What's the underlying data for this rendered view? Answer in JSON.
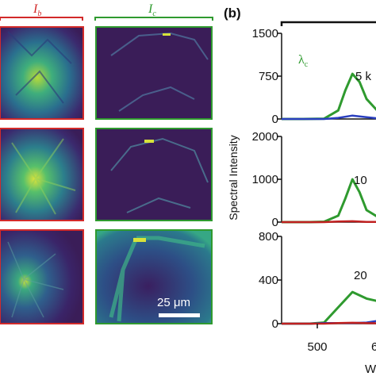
{
  "figure": {
    "left_panel": {
      "col_b_label": "I",
      "col_b_sub": "b",
      "col_c_label": "I",
      "col_c_sub": "c",
      "scale_bar_label": "25 μm",
      "colors": {
        "red": "#d22a2a",
        "green": "#2f9a2f",
        "bg": "#3b1f5c",
        "mid": "#2b7f8f",
        "bright": "#d8e23a"
      }
    },
    "right_panel": {
      "panel_label": "(b)",
      "ylabel": "Spectral Intensity",
      "xlabel_partial": "W",
      "x_tick_500": "500",
      "x_tick_partial": "6",
      "peak_label": "λ",
      "peak_sub": "c",
      "subplot_labels": [
        "5 k",
        "10",
        "20"
      ],
      "y_ticks": [
        [
          "1500",
          "750",
          "0"
        ],
        [
          "2000",
          "1000",
          "0"
        ],
        [
          "800",
          "400",
          "0"
        ]
      ]
    }
  },
  "chart_data": [
    {
      "type": "line",
      "xlabel": "W",
      "ylabel": "Spectral Intensity",
      "ylim": [
        0,
        1500
      ],
      "series": [
        {
          "color": "#2f9a2f",
          "x": [
            440,
            470,
            500,
            520,
            530,
            540,
            550,
            560,
            580,
            600,
            620
          ],
          "values": [
            0,
            0,
            5,
            150,
            500,
            790,
            650,
            350,
            80,
            15,
            5
          ]
        },
        {
          "color": "#2a3fbf",
          "x": [
            440,
            500,
            520,
            540,
            560,
            580,
            600,
            620
          ],
          "values": [
            0,
            0,
            20,
            60,
            30,
            5,
            0,
            0
          ]
        }
      ]
    },
    {
      "type": "line",
      "xlabel": "W",
      "ylabel": "Spectral Intensity",
      "ylim": [
        0,
        2000
      ],
      "series": [
        {
          "color": "#2f9a2f",
          "x": [
            440,
            480,
            500,
            520,
            530,
            540,
            550,
            560,
            580,
            600,
            620
          ],
          "values": [
            0,
            0,
            10,
            150,
            550,
            1000,
            700,
            280,
            80,
            30,
            20
          ]
        },
        {
          "color": "#c02020",
          "x": [
            440,
            500,
            520,
            540,
            560,
            620
          ],
          "values": [
            0,
            0,
            15,
            20,
            5,
            0
          ]
        }
      ]
    },
    {
      "type": "line",
      "xlabel": "W",
      "ylabel": "Spectral Intensity",
      "ylim": [
        0,
        800
      ],
      "series": [
        {
          "color": "#2f9a2f",
          "x": [
            440,
            480,
            500,
            520,
            540,
            560,
            580,
            600,
            620
          ],
          "values": [
            0,
            0,
            10,
            150,
            290,
            230,
            200,
            190,
            180
          ]
        },
        {
          "color": "#2a3fbf",
          "x": [
            440,
            480,
            500,
            520,
            540,
            560,
            580,
            600,
            620
          ],
          "values": [
            0,
            0,
            5,
            5,
            5,
            10,
            30,
            60,
            90
          ]
        },
        {
          "color": "#c02020",
          "x": [
            440,
            500,
            520,
            540,
            560,
            620
          ],
          "values": [
            0,
            0,
            5,
            8,
            4,
            0
          ]
        }
      ]
    }
  ]
}
